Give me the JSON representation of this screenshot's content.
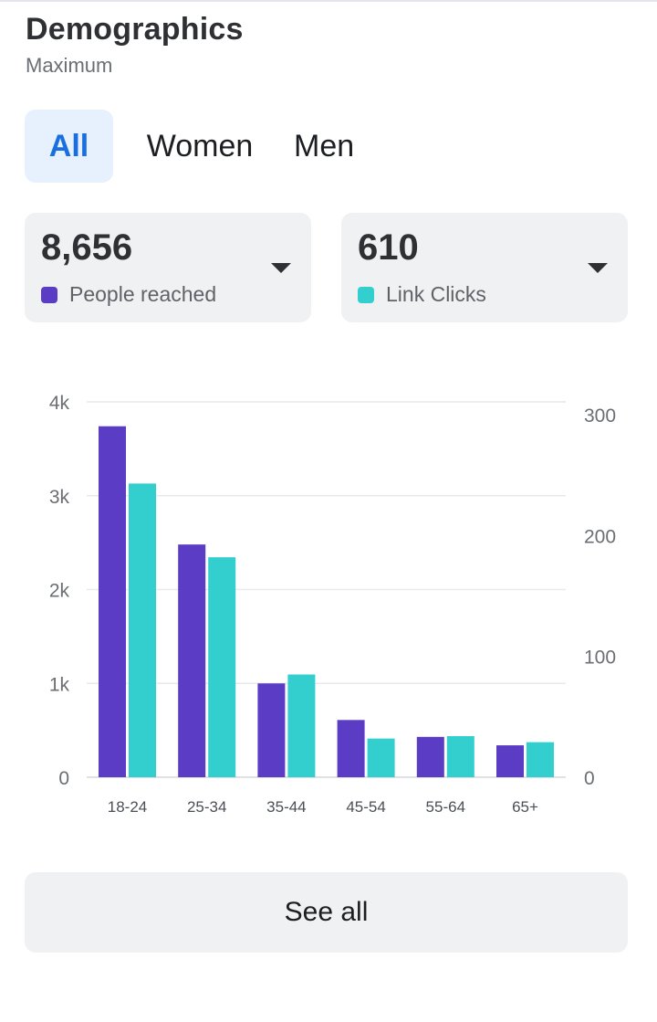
{
  "header": {
    "title": "Demographics",
    "subtitle": "Maximum"
  },
  "tabs": [
    {
      "label": "All",
      "selected": true
    },
    {
      "label": "Women",
      "selected": false
    },
    {
      "label": "Men",
      "selected": false
    }
  ],
  "metrics": [
    {
      "value": "8,656",
      "label": "People reached",
      "color": "#5b3cc4",
      "icon": "chevron-down-icon"
    },
    {
      "value": "610",
      "label": "Link Clicks",
      "color": "#33cfcf",
      "icon": "chevron-down-icon"
    }
  ],
  "colors": {
    "accent": "#1a6fe0",
    "tab_selected_bg": "#e7f0fd",
    "card_bg": "#f0f1f3"
  },
  "chart_data": {
    "type": "bar",
    "categories": [
      "18-24",
      "25-34",
      "35-44",
      "45-54",
      "55-64",
      "65+"
    ],
    "series": [
      {
        "name": "People reached",
        "axis": "left",
        "color": "#5b3cc4",
        "values": [
          3740,
          2480,
          1000,
          610,
          430,
          340
        ]
      },
      {
        "name": "Link Clicks",
        "axis": "right",
        "color": "#33cfcf",
        "values": [
          243,
          182,
          85,
          32,
          34,
          29
        ]
      }
    ],
    "y_left": {
      "ticks": [
        0,
        1000,
        2000,
        3000,
        4000
      ],
      "tick_labels": [
        "0",
        "1k",
        "2k",
        "3k",
        "4k"
      ],
      "ylim": [
        0,
        4000
      ]
    },
    "y_right": {
      "ticks": [
        0,
        100,
        200,
        300
      ],
      "tick_labels": [
        "0",
        "100",
        "200",
        "300"
      ],
      "ylim": [
        0,
        300
      ]
    },
    "grid": true,
    "legend": "none"
  },
  "footer": {
    "see_all_label": "See all"
  }
}
